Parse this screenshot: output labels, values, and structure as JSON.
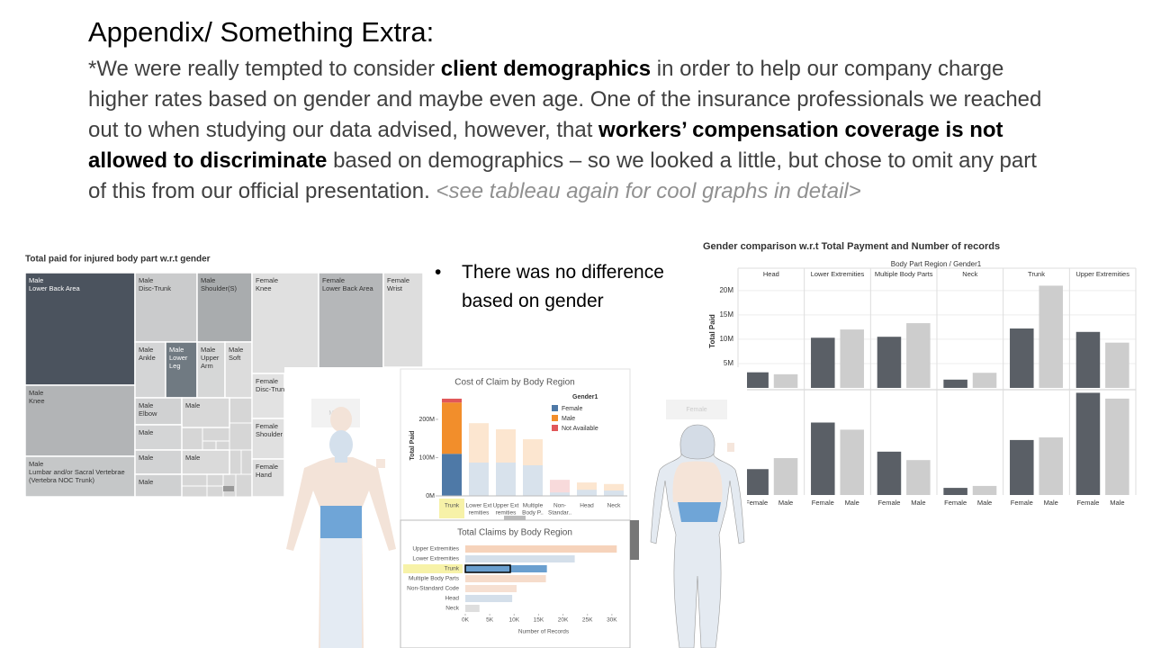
{
  "title": "Appendix/ Something Extra:",
  "body": [
    {
      "text": "*We were really tempted to consider ",
      "style": "normal"
    },
    {
      "text": "client demographics",
      "style": "bold"
    },
    {
      "text": " in order to help our company charge higher rates based on gender and maybe even age. One of the insurance professionals we reached out to when studying our data advised, however, that ",
      "style": "normal"
    },
    {
      "text": "workers’ compensation coverage is not allowed to discriminate",
      "style": "bold"
    },
    {
      "text": " based on demographics – so we looked a little, but chose to omit any part of this from our official presentation. ",
      "style": "normal"
    },
    {
      "text": "<see tableau again for cool graphs in detail>",
      "style": "italic"
    }
  ],
  "bullet": "There was no difference based on gender",
  "treemap": {
    "title": "Total paid for injured body part w.r.t gender",
    "cells": [
      {
        "lines": [
          "Male",
          "Lower Back Area"
        ],
        "color": "#4b535e"
      },
      {
        "lines": [
          "Male",
          "Knee"
        ],
        "color": "#b2b4b6"
      },
      {
        "lines": [
          "Male",
          "Lumbar and/or Sacral Vertebrae",
          "(Vertebra NOC Trunk)"
        ],
        "color": "#c5c7c8"
      },
      {
        "lines": [
          "Male",
          "Disc-Trunk"
        ],
        "color": "#cacbcc"
      },
      {
        "lines": [
          "Male",
          "Shoulder(S)"
        ],
        "color": "#a9acae"
      },
      {
        "lines": [
          "Male",
          "Ankle"
        ],
        "color": "#d4d5d6"
      },
      {
        "lines": [
          "Male",
          "Lower",
          "Leg"
        ],
        "color": "#707a82"
      },
      {
        "lines": [
          "Male",
          "Upper",
          "Arm"
        ],
        "color": "#d6d7d7"
      },
      {
        "lines": [
          "Male",
          "Soft"
        ],
        "color": "#dcdcdc"
      },
      {
        "lines": [
          "Male",
          "Elbow"
        ],
        "color": "#d0d1d2"
      },
      {
        "lines": [
          "Male"
        ],
        "color": "#d8d8d8"
      },
      {
        "lines": [
          "Male"
        ],
        "color": "#d4d5d6"
      },
      {
        "lines": [
          "Male"
        ],
        "color": "#d2d3d4"
      },
      {
        "lines": [
          "Male"
        ],
        "color": "#dadada"
      },
      {
        "lines": [
          "Male"
        ],
        "color": "#cfd0d1"
      },
      {
        "lines": [
          "Female",
          "Knee"
        ],
        "color": "#e0e0e0"
      },
      {
        "lines": [
          "Female",
          "Lower Back Area"
        ],
        "color": "#b5b7b9"
      },
      {
        "lines": [
          "Female",
          "Wrist"
        ],
        "color": "#dddddd"
      },
      {
        "lines": [
          "Female",
          "Disc-Trunk"
        ],
        "color": "#e2e2e2"
      },
      {
        "lines": [
          "Female",
          "Shoulder"
        ],
        "color": "#e0e0e0"
      },
      {
        "lines": [
          "Female",
          "Hand"
        ],
        "color": "#dedede"
      }
    ]
  },
  "gender_chart": {
    "type": "bar",
    "title": "Gender comparison w.r.t Total Payment and Number of records",
    "header": "Body Part Region / Gender1",
    "y_label": "Total Paid",
    "regions": [
      "Head",
      "Lower Extremities",
      "Multiple Body Parts",
      "Neck",
      "Trunk",
      "Upper Extremities"
    ],
    "genders": [
      "Female",
      "Male"
    ],
    "colors": [
      "#5a5f66",
      "#cdcdcd"
    ],
    "ylim": [
      0,
      22
    ],
    "yticks": [
      {
        "value": 5,
        "label": "5M"
      },
      {
        "value": 10,
        "label": "10M"
      },
      {
        "value": 15,
        "label": "15M"
      },
      {
        "value": 20,
        "label": "20M"
      }
    ],
    "series": [
      {
        "name": "Female",
        "values": [
          3.2,
          10.3,
          10.5,
          1.7,
          12.2,
          11.5
        ],
        "values2": [
          4.0,
          11.2,
          6.7,
          1.1,
          8.5,
          15.8
        ]
      },
      {
        "name": "Male",
        "values": [
          2.8,
          12.0,
          13.3,
          3.1,
          21.0,
          9.3
        ],
        "values2": [
          5.7,
          10.1,
          5.4,
          1.4,
          8.9,
          14.9
        ]
      }
    ],
    "y2lim": [
      0,
      16
    ]
  },
  "figures": {
    "male": "Male",
    "female": "Female"
  },
  "cost_chart": {
    "type": "bar",
    "title": "Cost of Claim by Body Region",
    "y_label": "Total Paid",
    "legend_title": "Gender1",
    "category_lines": [
      [
        "Trunk"
      ],
      [
        "Lower Ext",
        "remities"
      ],
      [
        "Upper Ext",
        "remities"
      ],
      [
        "Multiple",
        "Body P.."
      ],
      [
        "Non-",
        "Standar.."
      ],
      [
        "Head"
      ],
      [
        "Neck"
      ]
    ],
    "selected_index": 0,
    "ylim": [
      0,
      261
    ],
    "yticks": [
      {
        "value": 0,
        "label": "0M"
      },
      {
        "value": 100,
        "label": "100M"
      },
      {
        "value": 200,
        "label": "200M"
      }
    ],
    "series": [
      {
        "name": "Female",
        "color": "#4e79a7",
        "values": [
          110,
          87,
          87,
          80,
          9,
          16,
          14
        ]
      },
      {
        "name": "Male",
        "color": "#f28e2b",
        "values": [
          134,
          103,
          87,
          68,
          0,
          19,
          17
        ]
      },
      {
        "name": "Not Available",
        "color": "#e15759",
        "values": [
          10,
          0,
          0,
          0,
          33,
          0,
          0
        ]
      }
    ]
  },
  "claims_chart": {
    "type": "hbar",
    "title": "Total Claims by Body Region",
    "x_label": "Number of Records",
    "categories": [
      "Upper Extremities",
      "Lower Extremities",
      "Trunk",
      "Multiple Body Parts",
      "Non-Standard Code",
      "Head",
      "Neck"
    ],
    "selected_index": 2,
    "values": [
      31,
      22.4,
      16.7,
      16.5,
      10.5,
      9.6,
      2.9
    ],
    "colors": [
      "#f6d3bb",
      "#d4dfea",
      "#6a9fcf",
      "#f6dccb",
      "#f6e0d2",
      "#d4dfea",
      "#dedede"
    ],
    "xlim": [
      0,
      31.5
    ],
    "xticks": [
      {
        "value": 0,
        "label": "0K"
      },
      {
        "value": 5,
        "label": "5K"
      },
      {
        "value": 10,
        "label": "10K"
      },
      {
        "value": 15,
        "label": "15K"
      },
      {
        "value": 20,
        "label": "20K"
      },
      {
        "value": 25,
        "label": "25K"
      },
      {
        "value": 30,
        "label": "30K"
      }
    ]
  }
}
